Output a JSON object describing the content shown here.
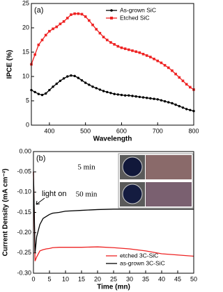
{
  "chart_data": [
    {
      "type": "line",
      "panel_label": "(a)",
      "x_label": "Wavelength",
      "y_label": "IPCE (%)",
      "x": [
        350,
        360,
        370,
        380,
        390,
        400,
        410,
        420,
        430,
        440,
        450,
        460,
        470,
        480,
        490,
        500,
        510,
        520,
        530,
        540,
        550,
        560,
        570,
        580,
        590,
        600,
        610,
        620,
        630,
        640,
        650,
        660,
        670,
        680,
        690,
        700,
        710,
        720,
        730,
        740,
        750,
        760,
        770,
        780,
        790,
        800
      ],
      "series": [
        {
          "name": "As-grown SiC",
          "color": "#000000",
          "marker": "circle",
          "values": [
            7.2,
            6.8,
            6.4,
            6.2,
            6.5,
            7.2,
            7.9,
            8.5,
            9.1,
            9.6,
            10,
            10.2,
            10.1,
            9.7,
            9.2,
            8.7,
            8.3,
            7.9,
            7.6,
            7.3,
            7,
            6.8,
            6.6,
            6.4,
            6.3,
            6.2,
            6.1,
            6.1,
            6,
            5.9,
            5.8,
            5.7,
            5.6,
            5.5,
            5.4,
            5.3,
            5.1,
            4.9,
            4.7,
            4.5,
            4.2,
            3.9,
            3.6,
            3.3,
            3.1,
            2.9
          ]
        },
        {
          "name": "Etched SiC",
          "color": "#ee2222",
          "marker": "square",
          "values": [
            12.5,
            14.5,
            16.5,
            17.5,
            18.5,
            19.3,
            19.8,
            20.2,
            20.8,
            21.3,
            22,
            22.7,
            22.9,
            22.9,
            22.8,
            22.3,
            21.5,
            20.6,
            19.7,
            18.9,
            18.1,
            17.5,
            17,
            16.6,
            16.2,
            15.9,
            15.7,
            15.5,
            15.3,
            15.1,
            14.9,
            14.6,
            14.3,
            14,
            13.6,
            13.2,
            12.8,
            12.3,
            11.8,
            11.2,
            10.5,
            9.8,
            9.1,
            8.4,
            7.8,
            7.3
          ]
        }
      ],
      "xlim": [
        350,
        800
      ],
      "xticks": [
        400,
        500,
        600,
        700,
        800
      ],
      "ylim": [
        0,
        25
      ],
      "yticks": [
        0,
        5,
        10,
        15,
        20,
        25
      ],
      "legend": "upper right"
    },
    {
      "type": "line",
      "panel_label": "(b)",
      "x_label": "Time (mn)",
      "y_label": "Current Density (mA cm⁻²)",
      "annotations": [
        "light on",
        "5 min",
        "50 min"
      ],
      "x": [
        0,
        0.5,
        1,
        2,
        3,
        4,
        5,
        6,
        8,
        10,
        15,
        20,
        25,
        30,
        35,
        40,
        45,
        50
      ],
      "series": [
        {
          "name": "etched 3C-SiC",
          "color": "#ee2222",
          "values": [
            -0.05,
            -0.27,
            -0.26,
            -0.245,
            -0.242,
            -0.24,
            -0.239,
            -0.237,
            -0.236,
            -0.236,
            -0.236,
            -0.235,
            -0.237,
            -0.24,
            -0.245,
            -0.252,
            -0.255,
            -0.258
          ]
        },
        {
          "name": "as-grown 3C-SiC",
          "color": "#000000",
          "values": [
            -0.05,
            -0.25,
            -0.21,
            -0.18,
            -0.165,
            -0.16,
            -0.155,
            -0.152,
            -0.15,
            -0.147,
            -0.145,
            -0.143,
            -0.142,
            -0.142,
            -0.142,
            -0.142,
            -0.142,
            -0.142
          ]
        }
      ],
      "xlim": [
        0,
        50
      ],
      "xticks": [
        0,
        5,
        10,
        15,
        20,
        25,
        30,
        35,
        40,
        45,
        50
      ],
      "ylim": [
        -0.3,
        0
      ],
      "yticks": [
        {
          "value": -0.3,
          "label": "-0.30"
        },
        -0.25,
        {
          "value": -0.2,
          "label": "-0.20"
        },
        -0.15,
        {
          "value": -0.1,
          "label": "-0.10"
        },
        -0.05,
        {
          "value": 0,
          "label": "0.00"
        }
      ],
      "legend": "lower right"
    }
  ]
}
